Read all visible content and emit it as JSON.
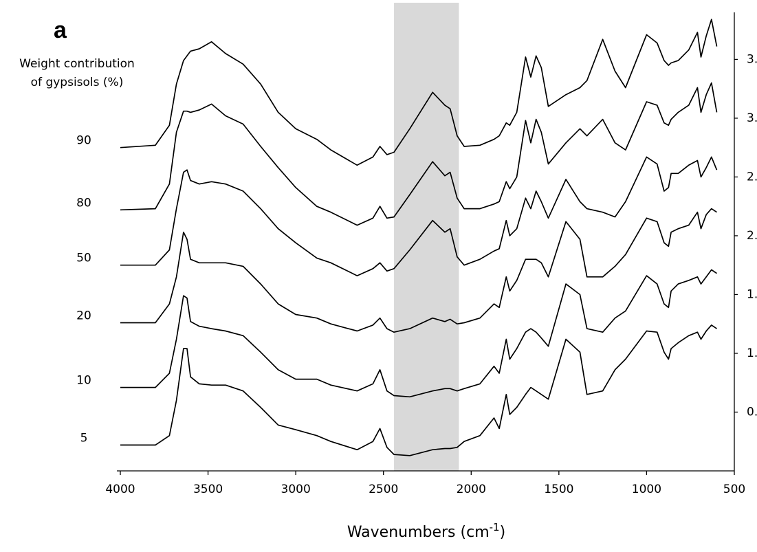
{
  "chart_data": {
    "type": "line",
    "panel_label": "a",
    "legend_title": [
      "Weight contribution",
      "of gypsisols (%)"
    ],
    "xlabel": [
      "Wavenumbers (cm",
      "-1",
      ")"
    ],
    "xlim": [
      4000,
      500
    ],
    "xticks": [
      4000,
      3500,
      3000,
      2500,
      2000,
      1500,
      1000,
      500
    ],
    "ylim": [
      0,
      3.9
    ],
    "yticks": [
      {
        "value": 0.5,
        "label": "0."
      },
      {
        "value": 1.0,
        "label": "1."
      },
      {
        "value": 1.5,
        "label": "1."
      },
      {
        "value": 2.0,
        "label": "2."
      },
      {
        "value": 2.5,
        "label": "2."
      },
      {
        "value": 3.0,
        "label": "3."
      },
      {
        "value": 3.5,
        "label": "3."
      }
    ],
    "highlight_range": [
      2440,
      2070
    ],
    "highlight_color": "#d9d9d9",
    "grid": false,
    "x": [
      4000,
      3800,
      3720,
      3680,
      3640,
      3620,
      3600,
      3550,
      3480,
      3400,
      3300,
      3200,
      3100,
      3000,
      2880,
      2800,
      2650,
      2560,
      2520,
      2480,
      2440,
      2350,
      2220,
      2150,
      2120,
      2080,
      2040,
      1950,
      1870,
      1840,
      1800,
      1780,
      1740,
      1690,
      1660,
      1630,
      1600,
      1560,
      1460,
      1380,
      1340,
      1250,
      1180,
      1120,
      1000,
      940,
      900,
      875,
      860,
      820,
      760,
      710,
      690,
      660,
      630,
      600
    ],
    "series": [
      {
        "name": "90",
        "color": "#000000",
        "values": [
          2.75,
          2.77,
          2.94,
          3.29,
          3.49,
          3.53,
          3.57,
          3.59,
          3.65,
          3.55,
          3.46,
          3.29,
          3.05,
          2.91,
          2.82,
          2.73,
          2.6,
          2.67,
          2.76,
          2.69,
          2.71,
          2.91,
          3.22,
          3.11,
          3.08,
          2.85,
          2.76,
          2.77,
          2.82,
          2.85,
          2.96,
          2.94,
          3.05,
          3.52,
          3.35,
          3.53,
          3.43,
          3.1,
          3.2,
          3.26,
          3.32,
          3.67,
          3.4,
          3.26,
          3.71,
          3.64,
          3.49,
          3.45,
          3.47,
          3.49,
          3.58,
          3.73,
          3.52,
          3.7,
          3.84,
          3.61
        ]
      },
      {
        "name": "80",
        "color": "#000000",
        "values": [
          2.22,
          2.23,
          2.44,
          2.88,
          3.06,
          3.06,
          3.05,
          3.07,
          3.12,
          3.02,
          2.95,
          2.76,
          2.58,
          2.41,
          2.25,
          2.2,
          2.09,
          2.15,
          2.25,
          2.15,
          2.16,
          2.35,
          2.63,
          2.51,
          2.54,
          2.32,
          2.23,
          2.23,
          2.27,
          2.29,
          2.46,
          2.4,
          2.5,
          2.98,
          2.79,
          2.99,
          2.88,
          2.61,
          2.79,
          2.91,
          2.85,
          2.99,
          2.79,
          2.73,
          3.14,
          3.11,
          2.96,
          2.94,
          2.99,
          3.05,
          3.11,
          3.26,
          3.05,
          3.2,
          3.3,
          3.05
        ]
      },
      {
        "name": "50",
        "color": "#000000",
        "values": [
          1.75,
          1.75,
          1.88,
          2.23,
          2.54,
          2.56,
          2.47,
          2.44,
          2.46,
          2.44,
          2.38,
          2.23,
          2.06,
          1.94,
          1.81,
          1.77,
          1.66,
          1.72,
          1.77,
          1.7,
          1.72,
          1.88,
          2.13,
          2.03,
          2.06,
          1.82,
          1.75,
          1.8,
          1.87,
          1.89,
          2.13,
          2.0,
          2.06,
          2.32,
          2.23,
          2.38,
          2.29,
          2.15,
          2.48,
          2.29,
          2.23,
          2.2,
          2.16,
          2.29,
          2.67,
          2.61,
          2.38,
          2.41,
          2.53,
          2.53,
          2.6,
          2.64,
          2.5,
          2.58,
          2.67,
          2.56
        ]
      },
      {
        "name": "20",
        "color": "#000000",
        "values": [
          1.26,
          1.26,
          1.42,
          1.65,
          2.03,
          1.97,
          1.8,
          1.77,
          1.77,
          1.77,
          1.74,
          1.59,
          1.42,
          1.33,
          1.3,
          1.25,
          1.19,
          1.24,
          1.3,
          1.21,
          1.18,
          1.21,
          1.3,
          1.27,
          1.29,
          1.25,
          1.26,
          1.3,
          1.42,
          1.39,
          1.65,
          1.53,
          1.62,
          1.8,
          1.8,
          1.8,
          1.77,
          1.65,
          2.12,
          1.97,
          1.65,
          1.65,
          1.74,
          1.84,
          2.15,
          2.12,
          1.94,
          1.91,
          2.03,
          2.06,
          2.09,
          2.2,
          2.06,
          2.18,
          2.23,
          2.2
        ]
      },
      {
        "name": "10",
        "color": "#000000",
        "values": [
          0.71,
          0.71,
          0.83,
          1.12,
          1.49,
          1.47,
          1.27,
          1.23,
          1.21,
          1.19,
          1.15,
          1.01,
          0.86,
          0.78,
          0.78,
          0.73,
          0.68,
          0.74,
          0.86,
          0.68,
          0.64,
          0.63,
          0.68,
          0.7,
          0.7,
          0.68,
          0.7,
          0.74,
          0.89,
          0.83,
          1.12,
          0.95,
          1.04,
          1.18,
          1.21,
          1.18,
          1.13,
          1.06,
          1.59,
          1.5,
          1.21,
          1.18,
          1.3,
          1.36,
          1.66,
          1.59,
          1.42,
          1.39,
          1.53,
          1.59,
          1.62,
          1.65,
          1.59,
          1.65,
          1.71,
          1.68
        ]
      },
      {
        "name": "5",
        "color": "#000000",
        "values": [
          0.22,
          0.22,
          0.3,
          0.6,
          1.04,
          1.04,
          0.8,
          0.74,
          0.73,
          0.73,
          0.68,
          0.54,
          0.39,
          0.35,
          0.3,
          0.25,
          0.18,
          0.25,
          0.36,
          0.2,
          0.14,
          0.13,
          0.18,
          0.19,
          0.19,
          0.2,
          0.25,
          0.3,
          0.45,
          0.36,
          0.65,
          0.48,
          0.54,
          0.65,
          0.71,
          0.68,
          0.65,
          0.61,
          1.12,
          1.01,
          0.65,
          0.68,
          0.86,
          0.95,
          1.19,
          1.18,
          1.01,
          0.95,
          1.04,
          1.09,
          1.15,
          1.18,
          1.12,
          1.19,
          1.24,
          1.21
        ]
      }
    ]
  }
}
